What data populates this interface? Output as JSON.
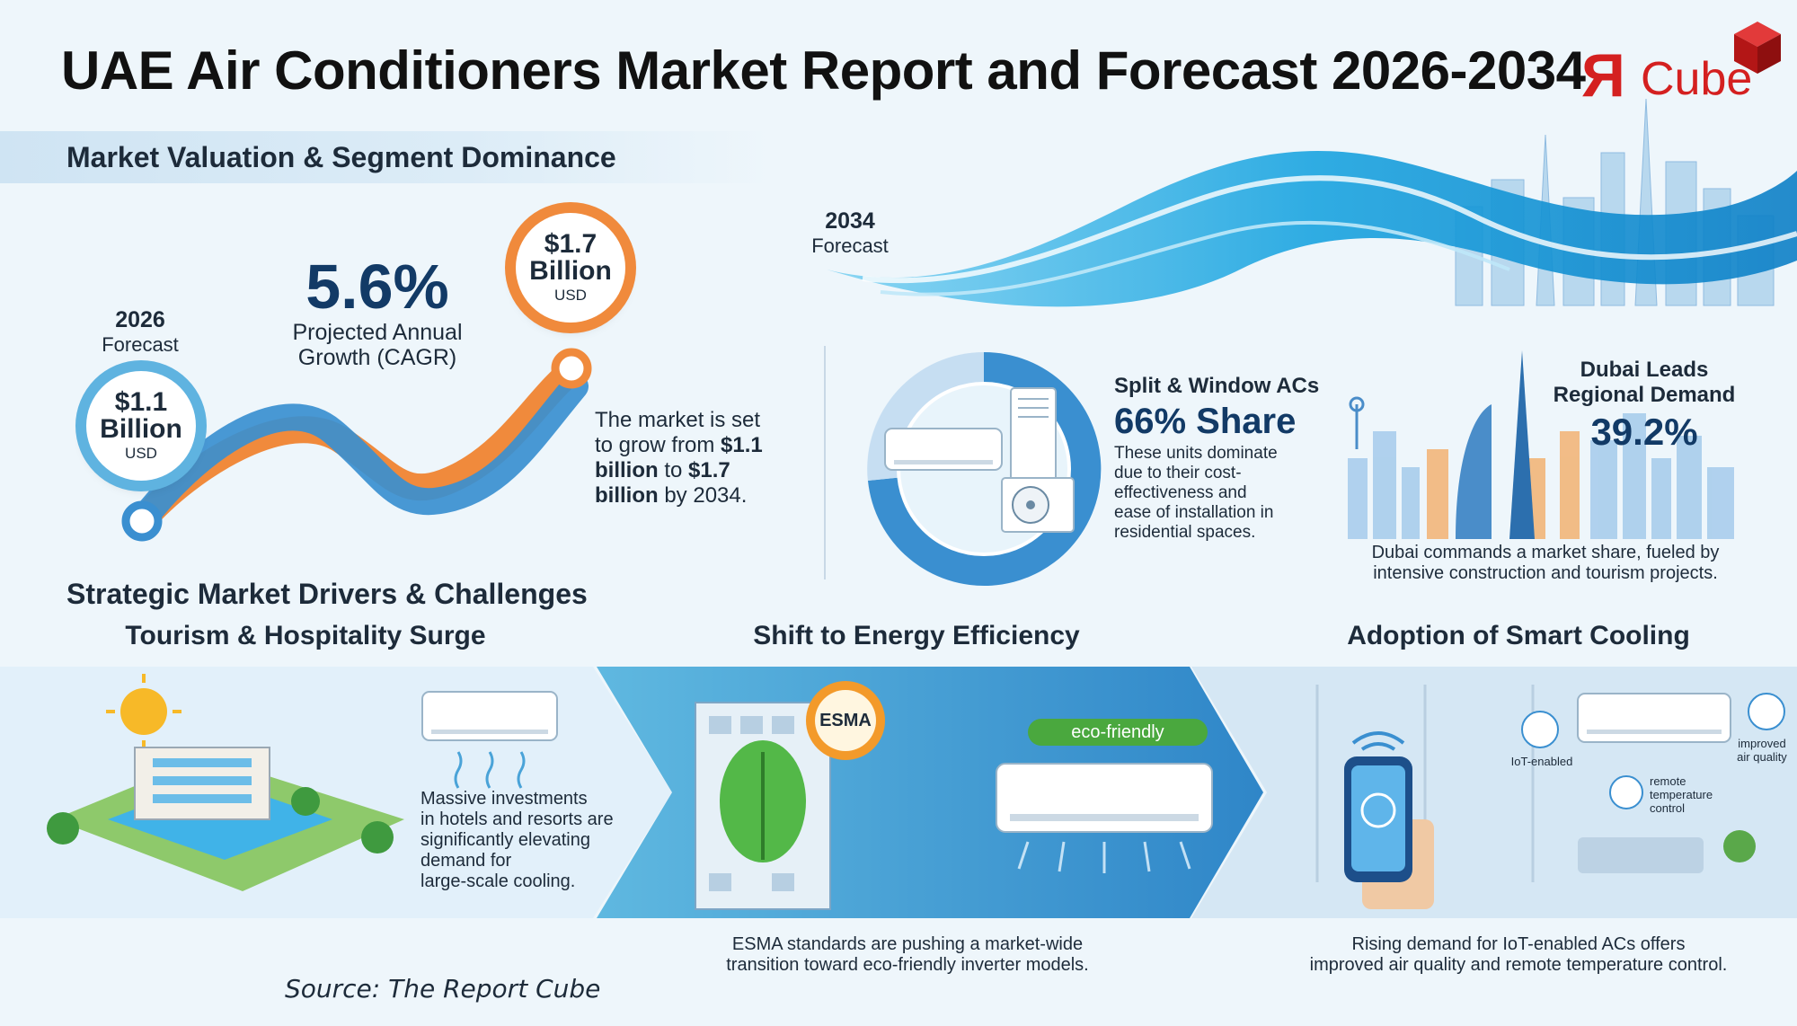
{
  "title": "UAE Air Conditioners Market Report and Forecast 2026-2034",
  "logo": {
    "mark": "Я",
    "text": "Cube"
  },
  "valuation": {
    "heading": "Market Valuation & Segment Dominance",
    "start": {
      "year": "2026",
      "label": "Forecast",
      "amount": "$1.1",
      "unit": "Billion",
      "currency": "USD"
    },
    "end": {
      "year": "2034",
      "label": "Forecast",
      "amount": "$1.7",
      "unit": "Billion",
      "currency": "USD"
    },
    "cagr": {
      "value": "5.6%",
      "label_line1": "Projected Annual",
      "label_line2": "Growth (CAGR)"
    },
    "summary": {
      "line1": "The market is set",
      "line2_pre": "to grow from ",
      "line2_bold": "$1.1",
      "line3_bold": "billion",
      "line3_mid": " to ",
      "line3_bold2": "$1.7",
      "line4_bold": "billion",
      "line4_post": " by 2034."
    }
  },
  "segment": {
    "title": "Split & Window ACs",
    "share": "66% Share",
    "description": [
      "These units dominate",
      "due to their cost-",
      "effectiveness and",
      "ease of installation in",
      "residential spaces."
    ]
  },
  "dubai": {
    "title_line1": "Dubai Leads",
    "title_line2": "Regional Demand",
    "share": "39.2%",
    "description_line1": "Dubai commands a market share, fueled by",
    "description_line2": "intensive construction and tourism projects."
  },
  "drivers": {
    "heading": "Strategic Market Drivers & Challenges",
    "items": [
      {
        "title": "Tourism & Hospitality Surge",
        "text": [
          "Massive investments",
          "in hotels and resorts are",
          "significantly elevating",
          "demand for",
          "large-scale cooling."
        ]
      },
      {
        "title": "Shift to Energy Efficiency",
        "badge": "ESMA",
        "tag": "eco-friendly",
        "caption_line1": "ESMA standards are pushing a market-wide",
        "caption_line2": "transition toward eco-friendly inverter models."
      },
      {
        "title": "Adoption of Smart Cooling",
        "labels": {
          "iot": "IoT-enabled",
          "air": [
            "improved",
            "air quality"
          ],
          "remote": [
            "remote",
            "temperature",
            "control"
          ]
        },
        "caption_line1": "Rising demand for IoT-enabled ACs offers",
        "caption_line2": "improved air quality and remote temperature control."
      }
    ]
  },
  "source": "Source: The Report Cube",
  "colors": {
    "blue": "#3a8fd0",
    "orange": "#f08a3c",
    "navy": "#123a66",
    "logo_red": "#d42020"
  }
}
